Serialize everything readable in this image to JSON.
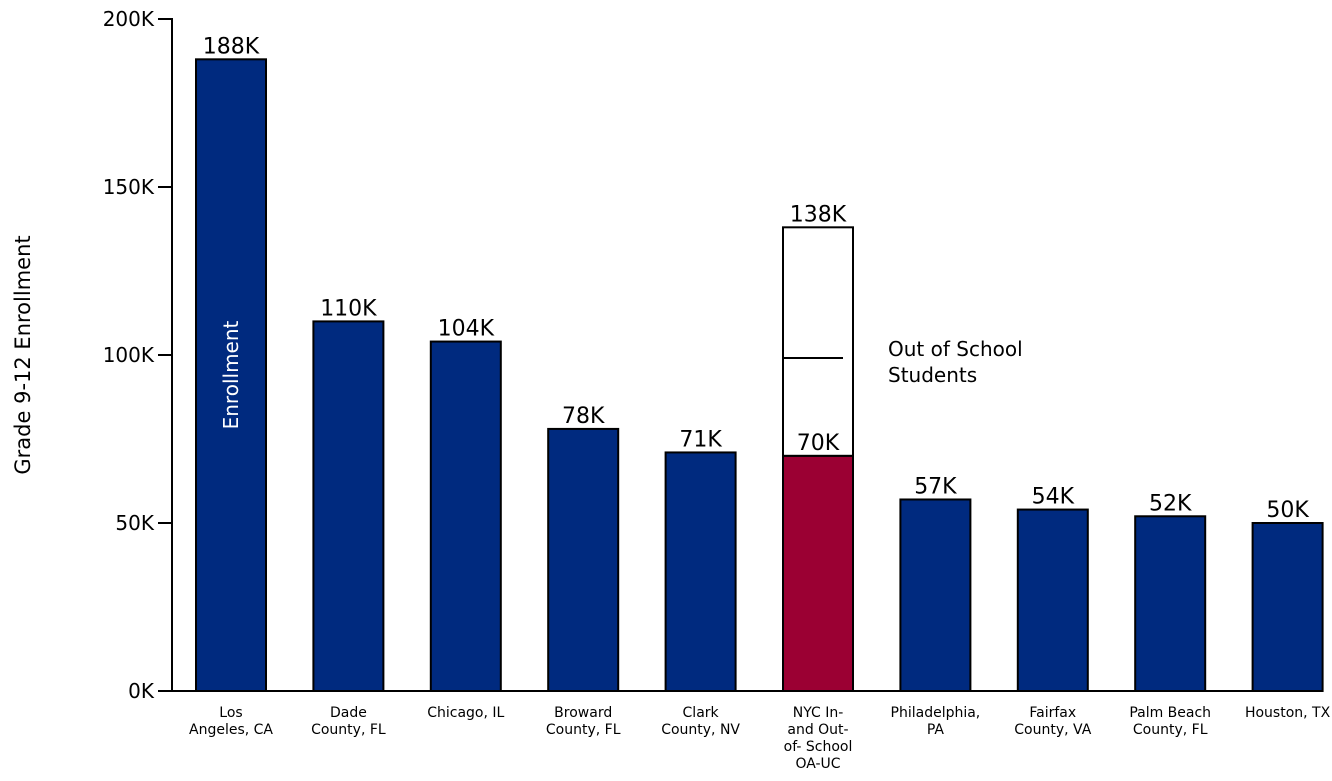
{
  "chart_data": {
    "type": "bar",
    "title": "",
    "ylabel": "Grade 9-12 Enrollment",
    "xlabel": "",
    "ylim": [
      0,
      200
    ],
    "yticks": [
      0,
      50,
      100,
      150,
      200
    ],
    "ytick_labels": [
      "0K",
      "50K",
      "100K",
      "150K",
      "200K"
    ],
    "categories": [
      [
        "Los",
        "Angeles, CA"
      ],
      [
        "Dade",
        "County, FL"
      ],
      [
        "Chicago, IL"
      ],
      [
        "Broward",
        "County, FL"
      ],
      [
        "Clark",
        "County, NV"
      ],
      [
        "NYC In-",
        "and Out-",
        "of- School",
        "OA-UC"
      ],
      [
        "Philadelphia,",
        "PA"
      ],
      [
        "Fairfax",
        "County, VA"
      ],
      [
        "Palm Beach",
        "County, FL"
      ],
      [
        "Houston, TX"
      ]
    ],
    "series": [
      {
        "values": [
          188,
          110,
          104,
          78,
          71,
          70,
          57,
          54,
          52,
          50
        ],
        "colors": [
          "#002a7f",
          "#002a7f",
          "#002a7f",
          "#002a7f",
          "#002a7f",
          "#9b0033",
          "#002a7f",
          "#002a7f",
          "#002a7f",
          "#002a7f"
        ],
        "labels": [
          "188K",
          "110K",
          "104K",
          "78K",
          "71K",
          "70K",
          "57K",
          "54K",
          "52K",
          "50K"
        ]
      },
      {
        "name": "Out of School Students",
        "values": [
          0,
          0,
          0,
          0,
          0,
          68,
          0,
          0,
          0,
          0
        ],
        "colors": [
          "#ffffff"
        ],
        "total_label_index": 5,
        "total_label": "138K"
      }
    ],
    "annotations": {
      "in_bar_label": "Enrollment",
      "out_of_school": [
        "Out of School",
        "Students"
      ]
    },
    "legend": "none",
    "grid": false
  }
}
